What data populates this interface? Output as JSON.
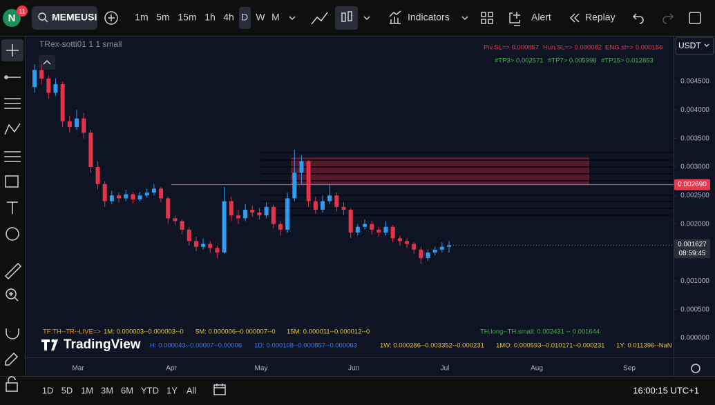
{
  "toolbar": {
    "avatar": "N",
    "badge": "11",
    "symbol": "MEMEUSI",
    "intervals": [
      "1m",
      "5m",
      "15m",
      "1h",
      "4h",
      "D",
      "W",
      "M"
    ],
    "indicators": "Indicators",
    "alert": "Alert",
    "replay": "Replay"
  },
  "chart_data": {
    "type": "candlestick",
    "legend": "TRex-sotti01 1 1 small",
    "currency": "USDT",
    "ylim": [
      -0.000339,
      0.005298
    ],
    "yticks": [
      {
        "value": 0,
        "label": "0.000000"
      },
      {
        "value": 0.0005,
        "label": "0.000500"
      },
      {
        "value": 0.001,
        "label": "0.001000"
      },
      {
        "value": 0.0015,
        "label": "0.001500"
      },
      {
        "value": 0.002,
        "label": "0.002000"
      },
      {
        "value": 0.0025,
        "label": "0.002500"
      },
      {
        "value": 0.003,
        "label": "0.003000"
      },
      {
        "value": 0.0035,
        "label": "0.003500"
      },
      {
        "value": 0.004,
        "label": "0.004000"
      },
      {
        "value": 0.0045,
        "label": "0.004500"
      }
    ],
    "months": [
      "Mar",
      "Apr",
      "May",
      "Jun",
      "Jul",
      "Aug",
      "Sep"
    ],
    "candles": [
      [
        0.0044,
        0.0048,
        0.0043,
        0.0047
      ],
      [
        0.0047,
        0.0048,
        0.00445,
        0.00455
      ],
      [
        0.00455,
        0.0046,
        0.0042,
        0.0043
      ],
      [
        0.0043,
        0.00455,
        0.00425,
        0.00445
      ],
      [
        0.00445,
        0.0045,
        0.0037,
        0.0038
      ],
      [
        0.0038,
        0.0039,
        0.0036,
        0.0037
      ],
      [
        0.0037,
        0.004,
        0.00365,
        0.00385
      ],
      [
        0.00385,
        0.00395,
        0.0035,
        0.0036
      ],
      [
        0.0036,
        0.00365,
        0.0029,
        0.003
      ],
      [
        0.003,
        0.0031,
        0.0026,
        0.0027
      ],
      [
        0.0027,
        0.00275,
        0.0023,
        0.0024
      ],
      [
        0.0024,
        0.00258,
        0.00235,
        0.0025
      ],
      [
        0.0025,
        0.00255,
        0.00238,
        0.00245
      ],
      [
        0.00245,
        0.0026,
        0.0024,
        0.00252
      ],
      [
        0.00252,
        0.00256,
        0.00236,
        0.00243
      ],
      [
        0.00243,
        0.00256,
        0.0024,
        0.0025
      ],
      [
        0.0025,
        0.00262,
        0.00246,
        0.00255
      ],
      [
        0.00255,
        0.0027,
        0.0025,
        0.00262
      ],
      [
        0.00262,
        0.00265,
        0.00238,
        0.00245
      ],
      [
        0.00245,
        0.00248,
        0.002,
        0.0021
      ],
      [
        0.0021,
        0.00215,
        0.00198,
        0.00205
      ],
      [
        0.00205,
        0.00208,
        0.00182,
        0.0019
      ],
      [
        0.0019,
        0.00195,
        0.00162,
        0.0017
      ],
      [
        0.0017,
        0.00178,
        0.00152,
        0.0016
      ],
      [
        0.0016,
        0.00175,
        0.00155,
        0.00165
      ],
      [
        0.00165,
        0.0017,
        0.0015,
        0.00158
      ],
      [
        0.00158,
        0.00162,
        0.0014,
        0.0015
      ],
      [
        0.0015,
        0.00265,
        0.00148,
        0.0024
      ],
      [
        0.0024,
        0.00248,
        0.00205,
        0.00215
      ],
      [
        0.00215,
        0.00225,
        0.002,
        0.0021
      ],
      [
        0.0021,
        0.00235,
        0.00205,
        0.00225
      ],
      [
        0.00225,
        0.00232,
        0.00212,
        0.0022
      ],
      [
        0.0022,
        0.00228,
        0.00208,
        0.00215
      ],
      [
        0.00215,
        0.00238,
        0.0021,
        0.0023
      ],
      [
        0.0023,
        0.00234,
        0.00192,
        0.002
      ],
      [
        0.002,
        0.00205,
        0.0018,
        0.0019
      ],
      [
        0.0019,
        0.00255,
        0.00185,
        0.00245
      ],
      [
        0.00245,
        0.0033,
        0.0024,
        0.0029
      ],
      [
        0.0029,
        0.0032,
        0.0027,
        0.0031
      ],
      [
        0.0031,
        0.00312,
        0.0023,
        0.0024
      ],
      [
        0.0024,
        0.00248,
        0.00218,
        0.00225
      ],
      [
        0.00225,
        0.0025,
        0.0022,
        0.0024
      ],
      [
        0.0024,
        0.0027,
        0.00235,
        0.0025
      ],
      [
        0.0025,
        0.00255,
        0.00222,
        0.0023
      ],
      [
        0.0023,
        0.00238,
        0.00215,
        0.00225
      ],
      [
        0.00225,
        0.00228,
        0.00175,
        0.00185
      ],
      [
        0.00185,
        0.002,
        0.0018,
        0.00195
      ],
      [
        0.00195,
        0.00208,
        0.0019,
        0.002
      ],
      [
        0.002,
        0.00205,
        0.00182,
        0.0019
      ],
      [
        0.0019,
        0.00195,
        0.00178,
        0.00185
      ],
      [
        0.00185,
        0.00205,
        0.0018,
        0.00195
      ],
      [
        0.00195,
        0.00198,
        0.00168,
        0.00175
      ],
      [
        0.00175,
        0.0018,
        0.00162,
        0.0017
      ],
      [
        0.0017,
        0.00175,
        0.00158,
        0.00165
      ],
      [
        0.00165,
        0.00168,
        0.00148,
        0.00155
      ],
      [
        0.00155,
        0.0016,
        0.0013,
        0.0014
      ],
      [
        0.0014,
        0.00155,
        0.00135,
        0.0015
      ],
      [
        0.0015,
        0.0016,
        0.00145,
        0.00155
      ],
      [
        0.00155,
        0.00168,
        0.0015,
        0.0016
      ],
      [
        0.0016,
        0.0017,
        0.0015,
        0.001627
      ]
    ],
    "levels": [
      0.003254,
      0.003121,
      0.003,
      0.002879,
      0.002758,
      0.002504,
      0.002395,
      0.002274,
      0.002153
    ],
    "zone": [
      0.003157,
      0.00271
    ],
    "pivot": {
      "value": 0.00269,
      "label": "0.002690"
    },
    "last_price": 0.001627,
    "countdown": "08:59:45",
    "info_red": [
      "Piv.SL=> 0.000857",
      "Hun.SL=> 0.000082",
      "ENG.sl=> 0.000156"
    ],
    "info_green": [
      "#TP3> 0.002571",
      "#TP7> 0.005998",
      "#TP15> 0.012853"
    ],
    "table_row1": [
      "TF:TH--TR--LIVE=>",
      "1M: 0.000003--0.000003--0",
      "5M: 0.000006--0.000007--0",
      "15M: 0.000011--0.000012--0",
      "TH.long--TH.small: 0.002431 -- 0.001644"
    ],
    "table_row2": [
      "H: 0.000043--0.00007--0.00006",
      "1D: 0.000108--0.000857--0.000063",
      "1W: 0.000286--0.003352--0.000231",
      "1MO: 0.000593--0.010171--0.000231",
      "1Y: 0.011396--NaN"
    ]
  },
  "logo": "TradingView",
  "bottom": {
    "ranges": [
      "1D",
      "5D",
      "1M",
      "3M",
      "6M",
      "YTD",
      "1Y",
      "All"
    ],
    "clock": "16:00:15 UTC+1"
  }
}
